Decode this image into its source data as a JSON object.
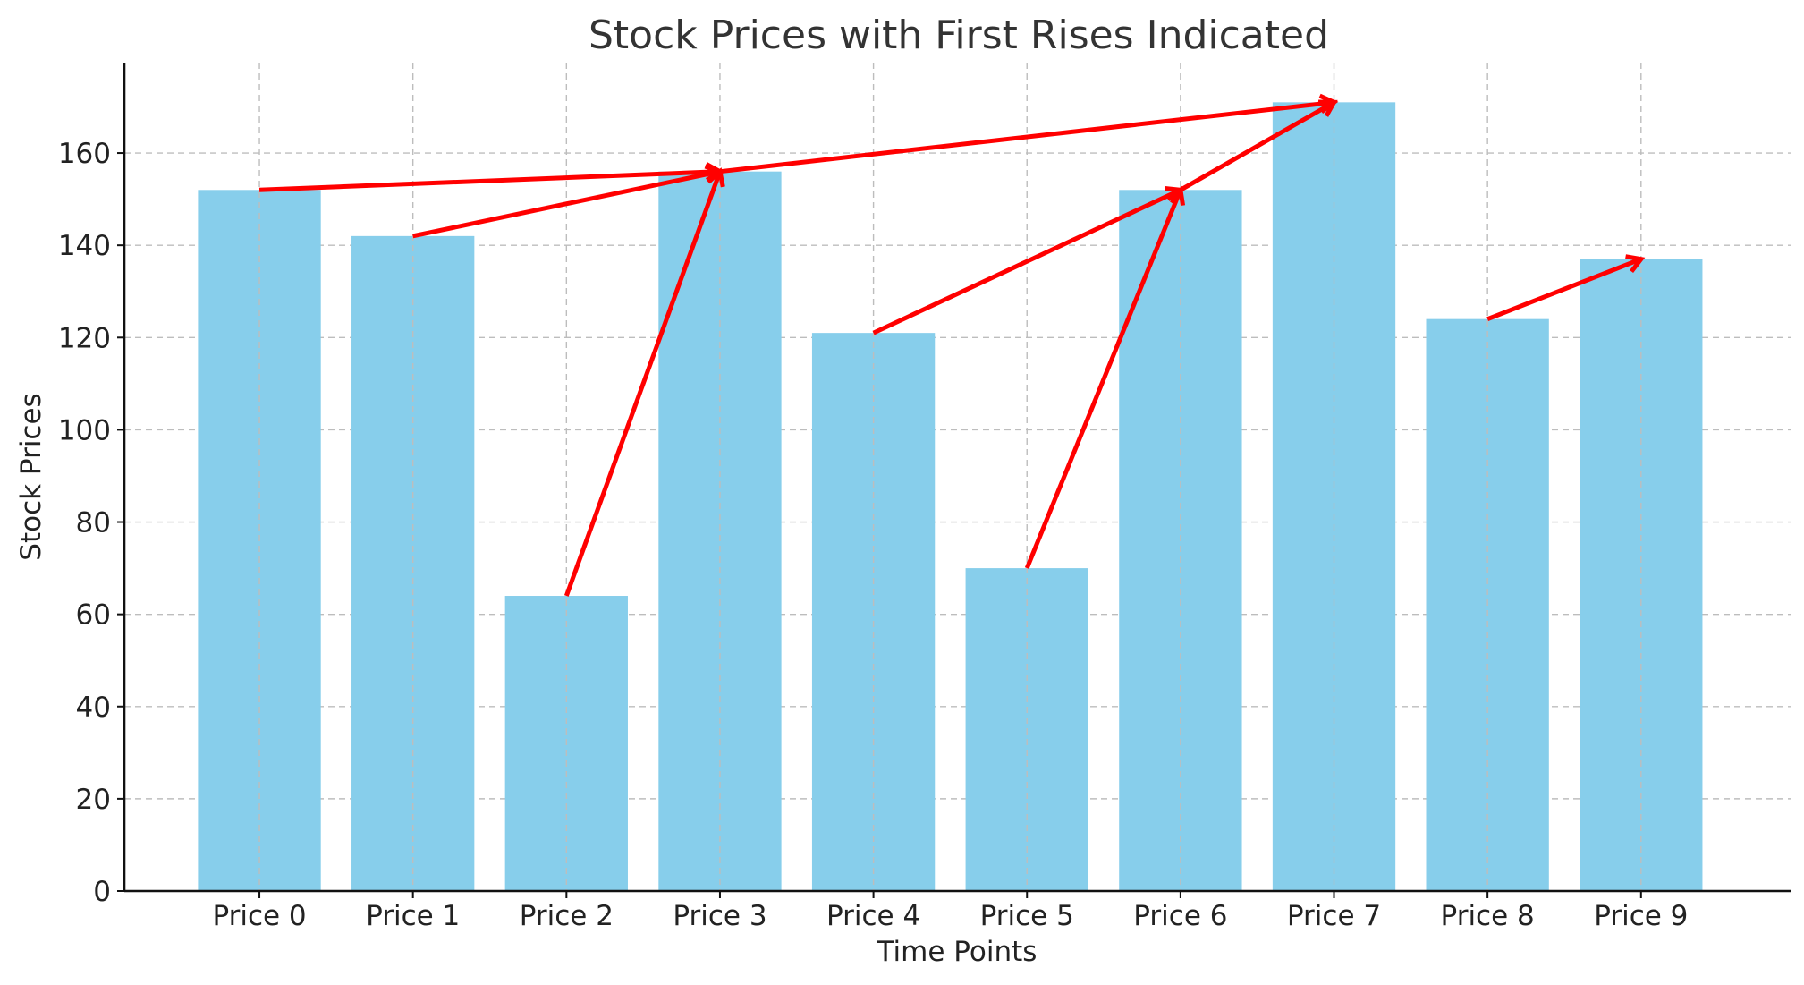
{
  "chart_data": {
    "type": "bar",
    "title": "Stock Prices with First Rises Indicated",
    "xlabel": "Time Points",
    "ylabel": "Stock Prices",
    "categories": [
      "Price 0",
      "Price 1",
      "Price 2",
      "Price 3",
      "Price 4",
      "Price 5",
      "Price 6",
      "Price 7",
      "Price 8",
      "Price 9"
    ],
    "values": [
      152,
      142,
      64,
      156,
      121,
      70,
      152,
      171,
      124,
      137
    ],
    "ylim": [
      0,
      180
    ],
    "yticks": [
      0,
      20,
      40,
      60,
      80,
      100,
      120,
      140,
      160
    ],
    "grid": true,
    "annotations": [
      {
        "type": "arrow",
        "from_index": 0,
        "to_index": 3
      },
      {
        "type": "arrow",
        "from_index": 1,
        "to_index": 3
      },
      {
        "type": "arrow",
        "from_index": 2,
        "to_index": 3
      },
      {
        "type": "arrow",
        "from_index": 3,
        "to_index": 7
      },
      {
        "type": "arrow",
        "from_index": 4,
        "to_index": 6
      },
      {
        "type": "arrow",
        "from_index": 5,
        "to_index": 6
      },
      {
        "type": "arrow",
        "from_index": 6,
        "to_index": 7
      },
      {
        "type": "arrow",
        "from_index": 8,
        "to_index": 9
      }
    ],
    "colors": {
      "bar": "#87CEEB",
      "arrow": "#FF0000",
      "grid": "#BDBDBD",
      "axis": "#111111"
    }
  }
}
